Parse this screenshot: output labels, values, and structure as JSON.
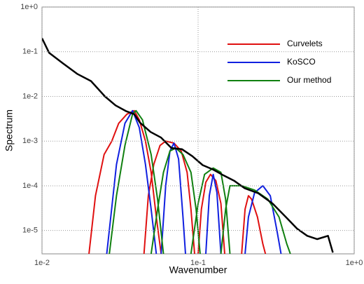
{
  "chart_data": {
    "type": "line",
    "xlabel": "Wavenumber",
    "ylabel": "Spectrum",
    "log_x": true,
    "log_y": true,
    "grid": true,
    "legend": "upper right",
    "xlim": [
      0.01,
      1
    ],
    "ylim": [
      3e-06,
      1
    ],
    "xticks": [
      {
        "value": 0.01,
        "label": "1e-2"
      },
      {
        "value": 0.1,
        "label": "1e-1"
      },
      {
        "value": 1,
        "label": "1e+0"
      }
    ],
    "yticks": [
      {
        "value": 1e-05,
        "label": "1e-5"
      },
      {
        "value": 0.0001,
        "label": "1e-4"
      },
      {
        "value": 0.001,
        "label": "1e-3"
      },
      {
        "value": 0.01,
        "label": "1e-2"
      },
      {
        "value": 0.1,
        "label": "1e-1"
      },
      {
        "value": 1,
        "label": "1e+0"
      }
    ],
    "reference": {
      "color": "#000000",
      "x": [
        0.01,
        0.0111,
        0.0136,
        0.0168,
        0.0206,
        0.0253,
        0.0296,
        0.0345,
        0.039,
        0.0424,
        0.0496,
        0.0579,
        0.0675,
        0.0787,
        0.0918,
        0.107,
        0.125,
        0.146,
        0.17,
        0.199,
        0.243,
        0.3,
        0.37,
        0.43,
        0.5,
        0.58,
        0.68,
        0.73
      ],
      "values": [
        0.2,
        0.095,
        0.055,
        0.032,
        0.022,
        0.01,
        0.0063,
        0.0047,
        0.004,
        0.0026,
        0.0016,
        0.0012,
        0.0007,
        0.00066,
        0.00046,
        0.00029,
        0.00023,
        0.00017,
        0.00013,
        8.8e-05,
        6.8e-05,
        4e-05,
        1.9e-05,
        1.1e-05,
        7.6e-06,
        6.4e-06,
        7.6e-06,
        3.2e-06
      ]
    },
    "series": [
      {
        "name": "Curvelets",
        "color": "#e01010",
        "x": [
          0.02,
          0.022,
          0.025,
          0.028,
          0.031,
          0.035,
          0.039,
          0.042,
          0.046,
          0.05,
          0.054,
          0.058,
          null,
          0.045,
          0.048,
          0.052,
          0.057,
          0.062,
          0.07,
          0.078,
          0.085,
          0.09,
          0.095,
          null,
          0.1,
          0.105,
          0.112,
          0.12,
          0.13,
          0.14,
          0.148,
          null,
          0.19,
          0.2,
          0.21,
          0.22,
          0.24,
          0.26,
          0.27
        ],
        "values": [
          3e-06,
          6e-05,
          0.0005,
          0.001,
          0.0025,
          0.004,
          0.0048,
          0.003,
          0.001,
          0.0002,
          2e-05,
          3e-06,
          null,
          3e-06,
          6e-05,
          0.0003,
          0.0008,
          0.001,
          0.0009,
          0.0006,
          0.0002,
          3e-05,
          3e-06,
          null,
          3e-06,
          3e-05,
          0.00012,
          0.00018,
          0.00013,
          4e-05,
          3e-06,
          null,
          3e-06,
          3e-05,
          6e-05,
          5e-05,
          2e-05,
          5e-06,
          3e-06
        ]
      },
      {
        "name": "KoSCO",
        "color": "#1020e0",
        "x": [
          0.026,
          0.03,
          0.034,
          0.038,
          0.042,
          0.046,
          0.05,
          0.054,
          null,
          0.058,
          0.062,
          0.066,
          0.07,
          0.075,
          0.08,
          0.083,
          null,
          0.112,
          0.118,
          0.125,
          0.132,
          0.14,
          null,
          0.2,
          0.21,
          0.23,
          0.26,
          0.29,
          0.32,
          0.34
        ],
        "values": [
          3e-06,
          0.0003,
          0.0025,
          0.0048,
          0.002,
          0.0003,
          3e-05,
          3e-06,
          null,
          3e-06,
          0.0001,
          0.0006,
          0.0009,
          0.0004,
          2e-05,
          3e-06,
          null,
          3e-06,
          6e-05,
          0.00018,
          7e-05,
          3e-06,
          null,
          3e-06,
          2e-05,
          7e-05,
          0.0001,
          6e-05,
          1e-05,
          3e-06
        ]
      },
      {
        "name": "Our method",
        "color": "#108010",
        "x": [
          0.027,
          0.03,
          0.034,
          0.038,
          0.04,
          0.044,
          0.05,
          0.055,
          0.06,
          null,
          0.05,
          0.055,
          0.06,
          0.066,
          0.072,
          0.08,
          0.09,
          0.097,
          0.103,
          null,
          0.09,
          0.1,
          0.11,
          0.125,
          0.14,
          0.15,
          0.16,
          null,
          0.14,
          0.15,
          0.16,
          0.19,
          0.23,
          0.28,
          0.33,
          0.37,
          0.39
        ],
        "values": [
          3e-06,
          6e-05,
          0.0008,
          0.004,
          0.0048,
          0.003,
          0.0005,
          5e-05,
          3e-06,
          null,
          3e-06,
          3e-05,
          0.0002,
          0.0006,
          0.0007,
          0.0005,
          0.0002,
          3e-05,
          3e-06,
          null,
          3e-06,
          4e-05,
          0.00018,
          0.00025,
          0.0002,
          5e-05,
          3e-06,
          null,
          3e-06,
          3e-05,
          0.0001,
          0.0001,
          8e-05,
          5e-05,
          2e-05,
          5e-06,
          3e-06
        ]
      }
    ]
  }
}
